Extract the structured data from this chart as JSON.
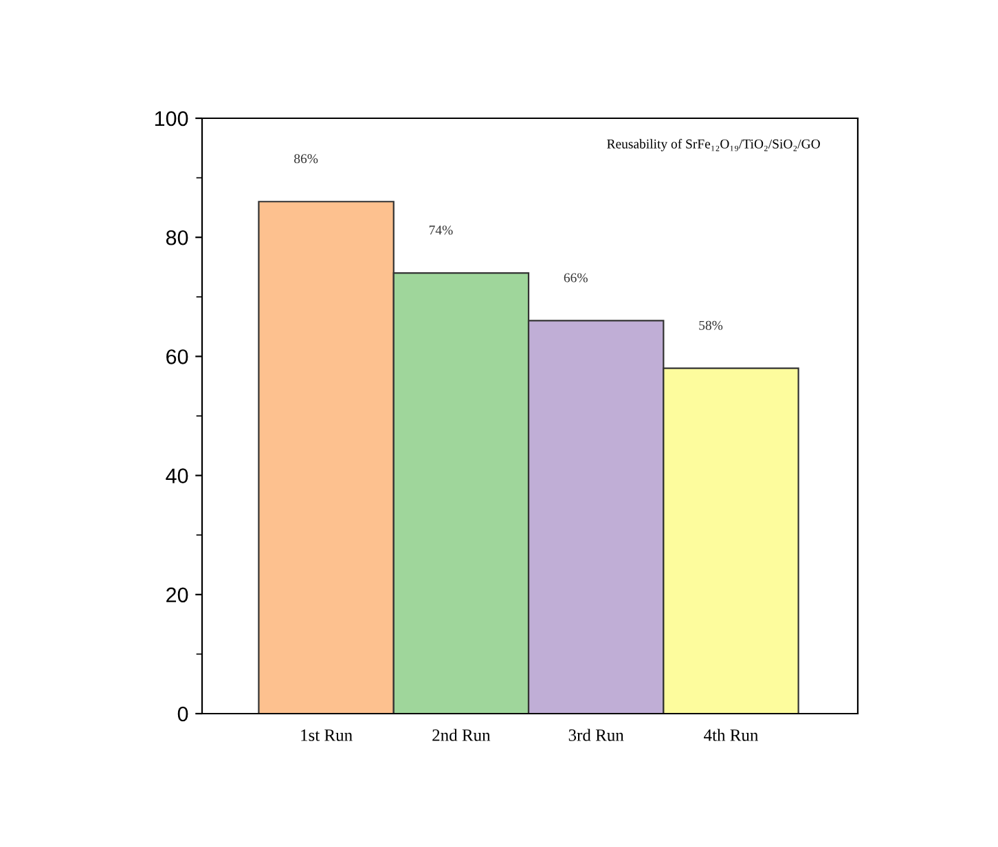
{
  "chart_data": {
    "type": "bar",
    "title": "Reusability of SrFe₁₂O₁₉/TiO₂/SiO₂/GO",
    "categories": [
      "1st Run",
      "2nd Run",
      "3rd Run",
      "4th Run"
    ],
    "values": [
      86,
      74,
      66,
      58
    ],
    "colors": [
      "#fdc18f",
      "#9fd69b",
      "#c0aed6",
      "#fdfc9d"
    ],
    "value_labels": [
      "86%",
      "74%",
      "66%",
      "58%"
    ],
    "ylim": [
      0,
      100
    ],
    "yticks": [
      0,
      20,
      40,
      60,
      80,
      100
    ],
    "grid": false
  }
}
